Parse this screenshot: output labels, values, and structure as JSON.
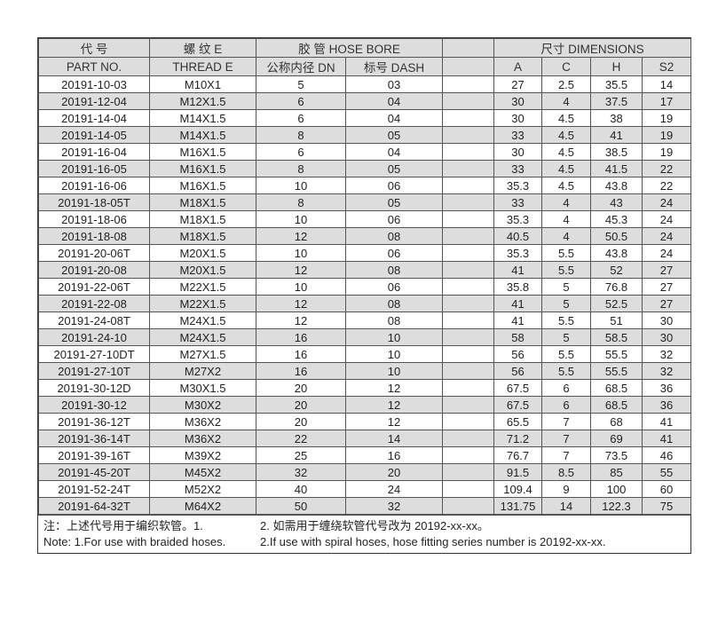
{
  "header": {
    "part_cn": "代 号",
    "part_en": "PART NO.",
    "thread": "螺 纹 E",
    "thread_en": "THREAD  E",
    "hose": "胶 管 HOSE BORE",
    "dn": "公称内径 DN",
    "dash": "标号 DASH",
    "dims": "尺寸 DIMENSIONS",
    "a": "A",
    "c": "C",
    "h": "H",
    "s2": "S2"
  },
  "rows": [
    [
      "20191-10-03",
      "M10X1",
      "5",
      "03",
      "27",
      "2.5",
      "35.5",
      "14"
    ],
    [
      "20191-12-04",
      "M12X1.5",
      "6",
      "04",
      "30",
      "4",
      "37.5",
      "17"
    ],
    [
      "20191-14-04",
      "M14X1.5",
      "6",
      "04",
      "30",
      "4.5",
      "38",
      "19"
    ],
    [
      "20191-14-05",
      "M14X1.5",
      "8",
      "05",
      "33",
      "4.5",
      "41",
      "19"
    ],
    [
      "20191-16-04",
      "M16X1.5",
      "6",
      "04",
      "30",
      "4.5",
      "38.5",
      "19"
    ],
    [
      "20191-16-05",
      "M16X1.5",
      "8",
      "05",
      "33",
      "4.5",
      "41.5",
      "22"
    ],
    [
      "20191-16-06",
      "M16X1.5",
      "10",
      "06",
      "35.3",
      "4.5",
      "43.8",
      "22"
    ],
    [
      "20191-18-05T",
      "M18X1.5",
      "8",
      "05",
      "33",
      "4",
      "43",
      "24"
    ],
    [
      "20191-18-06",
      "M18X1.5",
      "10",
      "06",
      "35.3",
      "4",
      "45.3",
      "24"
    ],
    [
      "20191-18-08",
      "M18X1.5",
      "12",
      "08",
      "40.5",
      "4",
      "50.5",
      "24"
    ],
    [
      "20191-20-06T",
      "M20X1.5",
      "10",
      "06",
      "35.3",
      "5.5",
      "43.8",
      "24"
    ],
    [
      "20191-20-08",
      "M20X1.5",
      "12",
      "08",
      "41",
      "5.5",
      "52",
      "27"
    ],
    [
      "20191-22-06T",
      "M22X1.5",
      "10",
      "06",
      "35.8",
      "5",
      "76.8",
      "27"
    ],
    [
      "20191-22-08",
      "M22X1.5",
      "12",
      "08",
      "41",
      "5",
      "52.5",
      "27"
    ],
    [
      "20191-24-08T",
      "M24X1.5",
      "12",
      "08",
      "41",
      "5.5",
      "51",
      "30"
    ],
    [
      "20191-24-10",
      "M24X1.5",
      "16",
      "10",
      "58",
      "5",
      "58.5",
      "30"
    ],
    [
      "20191-27-10DT",
      "M27X1.5",
      "16",
      "10",
      "56",
      "5.5",
      "55.5",
      "32"
    ],
    [
      "20191-27-10T",
      "M27X2",
      "16",
      "10",
      "56",
      "5.5",
      "55.5",
      "32"
    ],
    [
      "20191-30-12D",
      "M30X1.5",
      "20",
      "12",
      "67.5",
      "6",
      "68.5",
      "36"
    ],
    [
      "20191-30-12",
      "M30X2",
      "20",
      "12",
      "67.5",
      "6",
      "68.5",
      "36"
    ],
    [
      "20191-36-12T",
      "M36X2",
      "20",
      "12",
      "65.5",
      "7",
      "68",
      "41"
    ],
    [
      "20191-36-14T",
      "M36X2",
      "22",
      "14",
      "71.2",
      "7",
      "69",
      "41"
    ],
    [
      "20191-39-16T",
      "M39X2",
      "25",
      "16",
      "76.7",
      "7",
      "73.5",
      "46"
    ],
    [
      "20191-45-20T",
      "M45X2",
      "32",
      "20",
      "91.5",
      "8.5",
      "85",
      "55"
    ],
    [
      "20191-52-24T",
      "M52X2",
      "40",
      "24",
      "109.4",
      "9",
      "100",
      "60"
    ],
    [
      "20191-64-32T",
      "M64X2",
      "50",
      "32",
      "131.75",
      "14",
      "122.3",
      "75"
    ]
  ],
  "notes": {
    "cn1": "注：上述代号用于编织软管。1.",
    "cn2": "2. 如需用于缠绕软管代号改为 20192-xx-xx。",
    "en1": "Note: 1.For use with braided hoses.",
    "en2": "2.If use with spiral hoses, hose fitting series number is 20192-xx-xx."
  }
}
